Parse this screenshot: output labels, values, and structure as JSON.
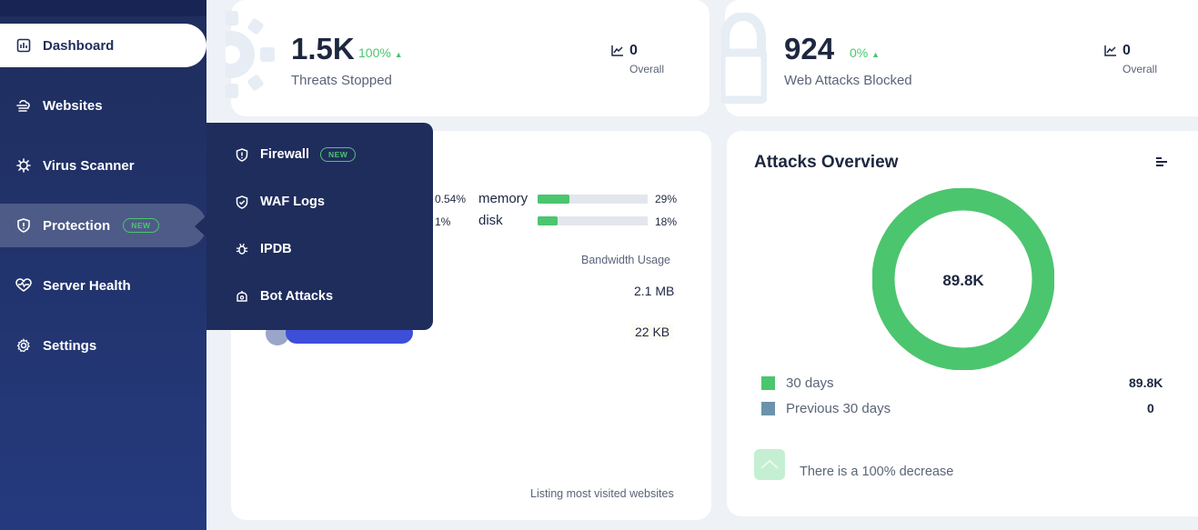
{
  "sidebar": {
    "items": [
      {
        "label": "Dashboard",
        "icon": "chart-box-icon"
      },
      {
        "label": "Websites",
        "icon": "cloud-icon"
      },
      {
        "label": "Virus Scanner",
        "icon": "virus-icon"
      },
      {
        "label": "Protection",
        "icon": "shield-icon",
        "badge": "NEW"
      },
      {
        "label": "Server Health",
        "icon": "heart-pulse-icon"
      },
      {
        "label": "Settings",
        "icon": "gear-icon"
      }
    ]
  },
  "flyout": {
    "items": [
      {
        "label": "Firewall",
        "icon": "shield-icon",
        "badge": "NEW"
      },
      {
        "label": "WAF Logs",
        "icon": "shield-check-icon"
      },
      {
        "label": "IPDB",
        "icon": "bug-icon"
      },
      {
        "label": "Bot Attacks",
        "icon": "robot-icon"
      }
    ]
  },
  "threats": {
    "value": "1.5K",
    "change": "100%",
    "label": "Threats Stopped",
    "overall_value": "0",
    "overall_label": "Overall"
  },
  "web_attacks": {
    "value": "924",
    "change": "0%",
    "label": "Web Attacks Blocked",
    "overall_value": "0",
    "overall_label": "Overall"
  },
  "server": {
    "cpu_percent": "0.54%",
    "load_percent": "1%",
    "memory_label": "memory",
    "memory_percent": "29%",
    "memory_fill": 0.29,
    "disk_label": "disk",
    "disk_percent": "18%",
    "disk_fill": 0.18
  },
  "websites": {
    "bandwidth_header": "Bandwidth Usage",
    "rows": [
      {
        "bandwidth": "2.1 MB"
      },
      {
        "bandwidth": "22 KB"
      }
    ],
    "footer": "Listing most visited websites"
  },
  "attacks_overview": {
    "title": "Attacks Overview",
    "center_value": "89.8K",
    "legend": [
      {
        "label": "30 days",
        "value": "89.8K",
        "color": "#4cc56f"
      },
      {
        "label": "Previous 30 days",
        "value": "0",
        "color": "#6b93ab"
      }
    ],
    "trend_text": "There is a 100% decrease"
  },
  "colors": {
    "accent_green": "#4cc56f",
    "sidebar_bg": "#1f2d5c",
    "redaction": "#3d4ed8"
  }
}
